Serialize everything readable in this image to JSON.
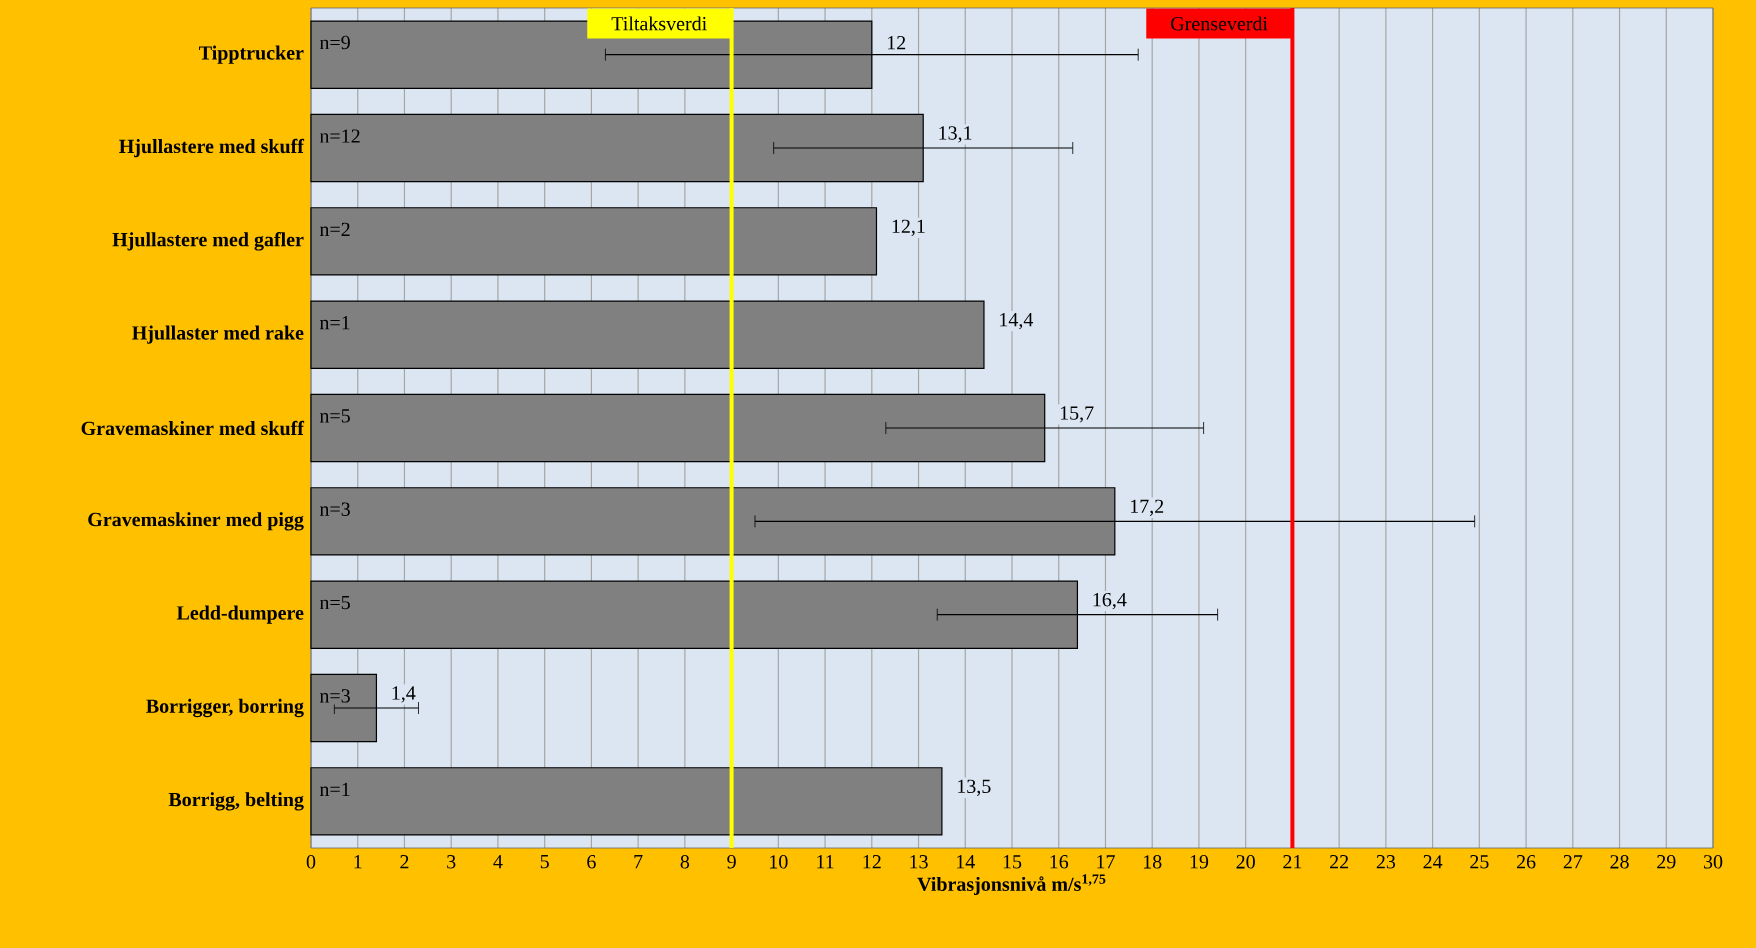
{
  "chart_data": {
    "type": "bar",
    "orientation": "horizontal",
    "xlabel": "Vibrasjonsnivå  m/s$^{1,75}$",
    "categories": [
      "Tipptrucker",
      "Hjullastere med skuff",
      "Hjullastere med gafler",
      "Hjullaster med rake",
      "Gravemaskiner med skuff",
      "Gravemaskiner med pigg",
      "Ledd-dumpere",
      "Borrigger, borring",
      "Borrigg, belting"
    ],
    "values": [
      12,
      13.1,
      12.1,
      14.4,
      15.7,
      17.2,
      16.4,
      1.4,
      13.5
    ],
    "value_labels": [
      "12",
      "13,1",
      "12,1",
      "14,4",
      "15,7",
      "17,2",
      "16,4",
      "1,4",
      "13,5"
    ],
    "errors": [
      5.7,
      3.2,
      null,
      null,
      3.4,
      7.7,
      3.0,
      0.9,
      null
    ],
    "color": "#808080",
    "xlim": [
      0,
      30
    ],
    "xticks": [
      0,
      1,
      2,
      3,
      4,
      5,
      6,
      7,
      8,
      9,
      10,
      11,
      12,
      13,
      14,
      15,
      16,
      17,
      18,
      19,
      20,
      21,
      22,
      23,
      24,
      25,
      26,
      27,
      28,
      29,
      30
    ],
    "grid": "x",
    "ref_lines": [
      {
        "axis": "x",
        "value": 9,
        "label": "Tiltaksverdi",
        "color": "#ffff00"
      },
      {
        "axis": "x",
        "value": 21,
        "label": "Grenseverdi",
        "color": "#ff0000"
      }
    ],
    "annotations": [
      "n=9",
      "n=12",
      "n=2",
      "n=1",
      "n=5",
      "n=3",
      "n=5",
      "n=3",
      "n=1"
    ]
  }
}
